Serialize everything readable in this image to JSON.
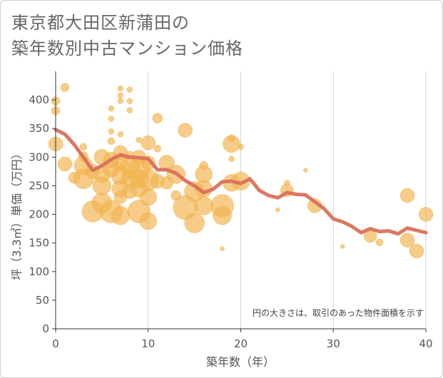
{
  "title_line1": "東京都大田区新蒲田の",
  "title_line2": "築年数別中古マンション価格",
  "chart_data": {
    "type": "scatter",
    "title": "東京都大田区新蒲田の築年数別中古マンション価格",
    "xlabel": "築年数（年）",
    "ylabel": "坪（3.3㎡）単価（万円）",
    "xlim": [
      0,
      40
    ],
    "ylim": [
      0,
      450
    ],
    "xticks": [
      0,
      10,
      20,
      30,
      40
    ],
    "yticks": [
      0,
      50,
      100,
      150,
      200,
      250,
      300,
      350,
      400
    ],
    "grid": "vertical",
    "note": "円の大きさは、取引のあった物件面積を示す",
    "colors": {
      "bubble": "#f2b450",
      "line": "#d9705a"
    },
    "series": [
      {
        "type": "line",
        "x": [
          0,
          1,
          2,
          3,
          4,
          5,
          6,
          7,
          8,
          9,
          10,
          11,
          12,
          13,
          14,
          15,
          16,
          17,
          18,
          19,
          20,
          21,
          22,
          23,
          24,
          25,
          26,
          27,
          28,
          29,
          30,
          31,
          32,
          33,
          34,
          35,
          36,
          37,
          38,
          39,
          40
        ],
        "values": [
          348,
          340,
          322,
          300,
          277,
          285,
          296,
          304,
          300,
          299,
          297,
          278,
          278,
          272,
          259,
          250,
          238,
          244,
          257,
          258,
          254,
          262,
          242,
          233,
          229,
          238,
          235,
          234,
          222,
          210,
          192,
          187,
          179,
          168,
          175,
          170,
          171,
          166,
          176,
          172,
          168
        ]
      },
      {
        "type": "scatter",
        "points": [
          {
            "x": 0,
            "y": 398,
            "s": 6
          },
          {
            "x": 0,
            "y": 381,
            "s": 6
          },
          {
            "x": 0,
            "y": 323,
            "s": 10
          },
          {
            "x": 1,
            "y": 422,
            "s": 6
          },
          {
            "x": 1,
            "y": 288,
            "s": 10
          },
          {
            "x": 2,
            "y": 264,
            "s": 8
          },
          {
            "x": 3,
            "y": 318,
            "s": 5
          },
          {
            "x": 3,
            "y": 301,
            "s": 7
          },
          {
            "x": 3,
            "y": 285,
            "s": 13
          },
          {
            "x": 3,
            "y": 262,
            "s": 14
          },
          {
            "x": 4,
            "y": 275,
            "s": 10
          },
          {
            "x": 4,
            "y": 205,
            "s": 15
          },
          {
            "x": 5,
            "y": 300,
            "s": 11
          },
          {
            "x": 5,
            "y": 270,
            "s": 12
          },
          {
            "x": 5,
            "y": 250,
            "s": 13
          },
          {
            "x": 5,
            "y": 220,
            "s": 14
          },
          {
            "x": 6,
            "y": 385,
            "s": 4
          },
          {
            "x": 6,
            "y": 367,
            "s": 4
          },
          {
            "x": 6,
            "y": 345,
            "s": 4
          },
          {
            "x": 6,
            "y": 328,
            "s": 5
          },
          {
            "x": 6,
            "y": 295,
            "s": 11
          },
          {
            "x": 6,
            "y": 280,
            "s": 12
          },
          {
            "x": 6,
            "y": 205,
            "s": 16
          },
          {
            "x": 7,
            "y": 420,
            "s": 4
          },
          {
            "x": 7,
            "y": 408,
            "s": 4
          },
          {
            "x": 7,
            "y": 398,
            "s": 4
          },
          {
            "x": 7,
            "y": 340,
            "s": 4
          },
          {
            "x": 7,
            "y": 308,
            "s": 10
          },
          {
            "x": 7,
            "y": 290,
            "s": 11
          },
          {
            "x": 7,
            "y": 268,
            "s": 13
          },
          {
            "x": 7,
            "y": 245,
            "s": 12
          },
          {
            "x": 7,
            "y": 230,
            "s": 9
          },
          {
            "x": 7,
            "y": 198,
            "s": 13
          },
          {
            "x": 8,
            "y": 418,
            "s": 4
          },
          {
            "x": 8,
            "y": 398,
            "s": 4
          },
          {
            "x": 8,
            "y": 382,
            "s": 4
          },
          {
            "x": 8,
            "y": 303,
            "s": 6
          },
          {
            "x": 8,
            "y": 282,
            "s": 14
          },
          {
            "x": 8,
            "y": 262,
            "s": 12
          },
          {
            "x": 8,
            "y": 240,
            "s": 10
          },
          {
            "x": 9,
            "y": 330,
            "s": 4
          },
          {
            "x": 9,
            "y": 300,
            "s": 10
          },
          {
            "x": 9,
            "y": 280,
            "s": 15
          },
          {
            "x": 9,
            "y": 262,
            "s": 13
          },
          {
            "x": 9,
            "y": 245,
            "s": 12
          },
          {
            "x": 9,
            "y": 205,
            "s": 16
          },
          {
            "x": 10,
            "y": 325,
            "s": 10
          },
          {
            "x": 10,
            "y": 290,
            "s": 10
          },
          {
            "x": 10,
            "y": 260,
            "s": 15
          },
          {
            "x": 10,
            "y": 230,
            "s": 12
          },
          {
            "x": 10,
            "y": 188,
            "s": 12
          },
          {
            "x": 11,
            "y": 368,
            "s": 7
          },
          {
            "x": 11,
            "y": 315,
            "s": 5
          },
          {
            "x": 11,
            "y": 258,
            "s": 10
          },
          {
            "x": 12,
            "y": 290,
            "s": 11
          },
          {
            "x": 12,
            "y": 255,
            "s": 9
          },
          {
            "x": 13,
            "y": 270,
            "s": 13
          },
          {
            "x": 13,
            "y": 233,
            "s": 7
          },
          {
            "x": 14,
            "y": 347,
            "s": 10
          },
          {
            "x": 14,
            "y": 212,
            "s": 17
          },
          {
            "x": 15,
            "y": 240,
            "s": 14
          },
          {
            "x": 15,
            "y": 185,
            "s": 14
          },
          {
            "x": 16,
            "y": 285,
            "s": 6
          },
          {
            "x": 16,
            "y": 270,
            "s": 12
          },
          {
            "x": 16,
            "y": 245,
            "s": 12
          },
          {
            "x": 16,
            "y": 215,
            "s": 13
          },
          {
            "x": 18,
            "y": 215,
            "s": 16
          },
          {
            "x": 18,
            "y": 198,
            "s": 13
          },
          {
            "x": 18,
            "y": 140,
            "s": 3
          },
          {
            "x": 19,
            "y": 333,
            "s": 5
          },
          {
            "x": 19,
            "y": 323,
            "s": 12
          },
          {
            "x": 19,
            "y": 297,
            "s": 4
          },
          {
            "x": 19,
            "y": 255,
            "s": 12
          },
          {
            "x": 20,
            "y": 318,
            "s": 4
          },
          {
            "x": 20,
            "y": 258,
            "s": 13
          },
          {
            "x": 24,
            "y": 208,
            "s": 3
          },
          {
            "x": 25,
            "y": 255,
            "s": 4
          },
          {
            "x": 25,
            "y": 242,
            "s": 9
          },
          {
            "x": 27,
            "y": 277,
            "s": 3
          },
          {
            "x": 28,
            "y": 215,
            "s": 10
          },
          {
            "x": 31,
            "y": 144,
            "s": 3
          },
          {
            "x": 34,
            "y": 162,
            "s": 9
          },
          {
            "x": 35,
            "y": 151,
            "s": 5
          },
          {
            "x": 38,
            "y": 233,
            "s": 10
          },
          {
            "x": 38,
            "y": 155,
            "s": 10
          },
          {
            "x": 39,
            "y": 136,
            "s": 10
          },
          {
            "x": 40,
            "y": 200,
            "s": 10
          }
        ]
      }
    ]
  }
}
